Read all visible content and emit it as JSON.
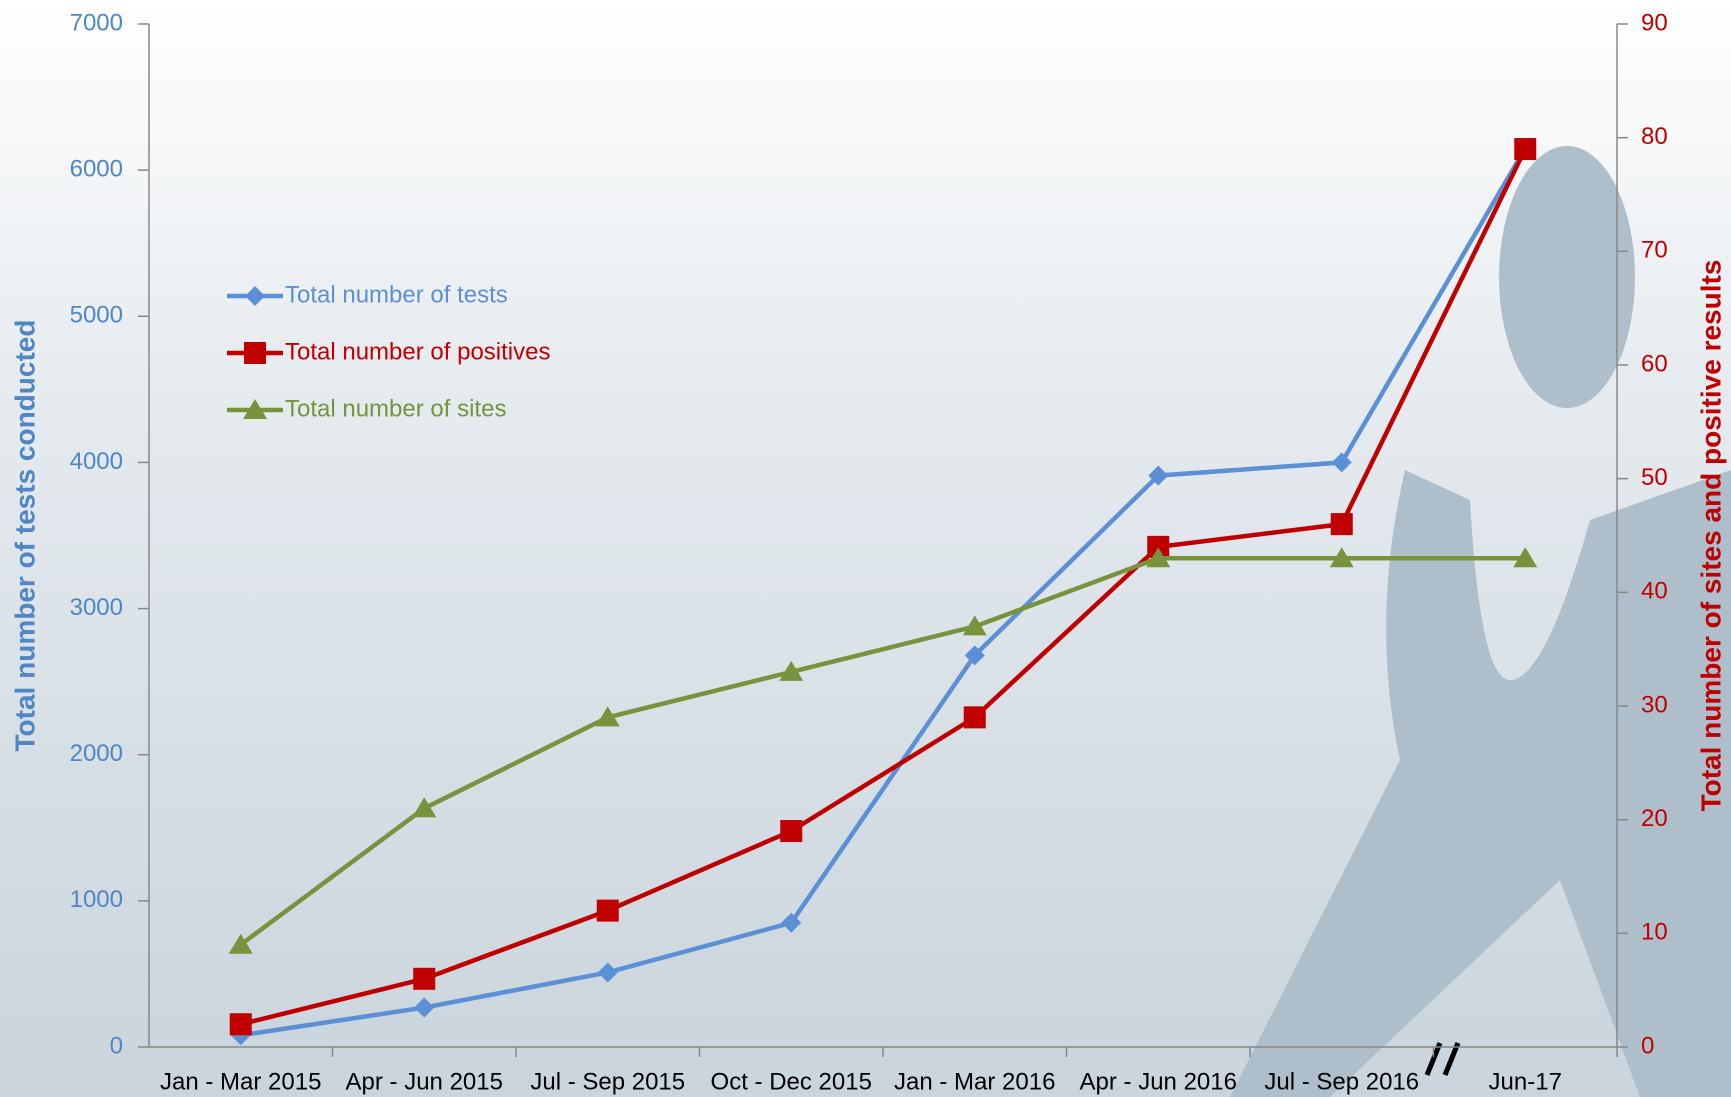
{
  "chart_data": {
    "type": "line",
    "categories": [
      "Jan - Mar 2015",
      "Apr - Jun 2015",
      "Jul - Sep 2015",
      "Oct - Dec 2015",
      "Jan - Mar 2016",
      "Apr - Jun 2016",
      "Jul - Sep 2016",
      "Jun-17"
    ],
    "y_label": "Total number of tests conducted",
    "y2_label": "Total number of sites and positive results",
    "ylim": [
      0,
      7000
    ],
    "yticks": [
      0,
      1000,
      2000,
      3000,
      4000,
      5000,
      6000,
      7000
    ],
    "y2lim": [
      0,
      90
    ],
    "y2ticks": [
      0,
      10,
      20,
      30,
      40,
      50,
      60,
      70,
      80,
      90
    ],
    "y_color": "#4f86c6",
    "y2_color": "#c00000",
    "legend": "upper left",
    "series": [
      {
        "name": "Total number of tests",
        "color": "#5b8fd6",
        "marker": "diamond",
        "values": [
          80,
          270,
          510,
          850,
          2680,
          3910,
          4000,
          6150
        ]
      },
      {
        "name": "Total number of positives",
        "color": "#c00000",
        "marker": "square",
        "axis": "y2",
        "values": [
          2,
          6,
          12,
          19,
          29,
          44,
          46,
          79
        ]
      },
      {
        "name": "Total number of sites",
        "color": "#77933c",
        "marker": "triangle",
        "axis": "y2",
        "values": [
          9,
          21,
          29,
          33,
          37,
          43,
          43,
          43
        ]
      }
    ]
  }
}
